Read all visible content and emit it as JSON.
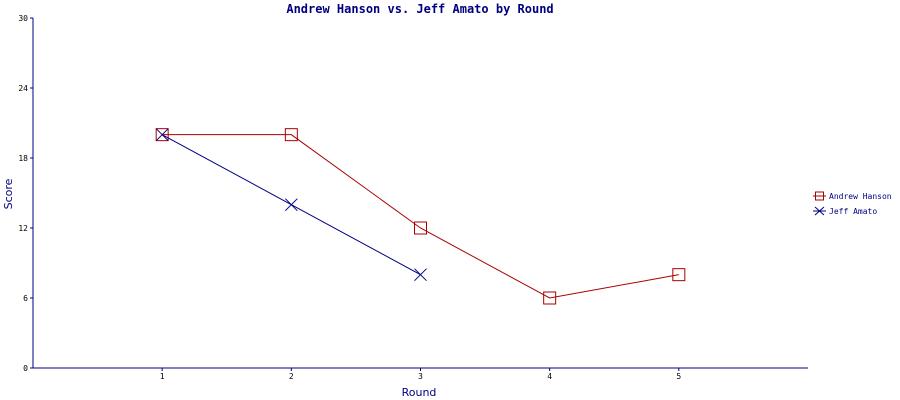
{
  "chart_data": {
    "type": "line",
    "title": "Andrew Hanson vs. Jeff Amato by Round",
    "xlabel": "Round",
    "ylabel": "Score",
    "x": [
      1,
      2,
      3,
      4,
      5
    ],
    "xticks": [
      "1",
      "2",
      "3",
      "4",
      "5"
    ],
    "xlim": [
      0,
      6
    ],
    "ylim": [
      0,
      30
    ],
    "yticks": [
      "0",
      "6",
      "12",
      "18",
      "24",
      "30"
    ],
    "grid": false,
    "legend_position": "right",
    "series": [
      {
        "name": "Andrew Hanson",
        "color": "#aa0000",
        "marker": "square",
        "x": [
          1,
          2,
          3,
          4,
          5
        ],
        "values": [
          20,
          20,
          12,
          6,
          8
        ]
      },
      {
        "name": "Jeff Amato",
        "color": "#000080",
        "marker": "x",
        "x": [
          1,
          2,
          3
        ],
        "values": [
          20,
          14,
          8
        ]
      }
    ],
    "axis_color": "#000080"
  }
}
